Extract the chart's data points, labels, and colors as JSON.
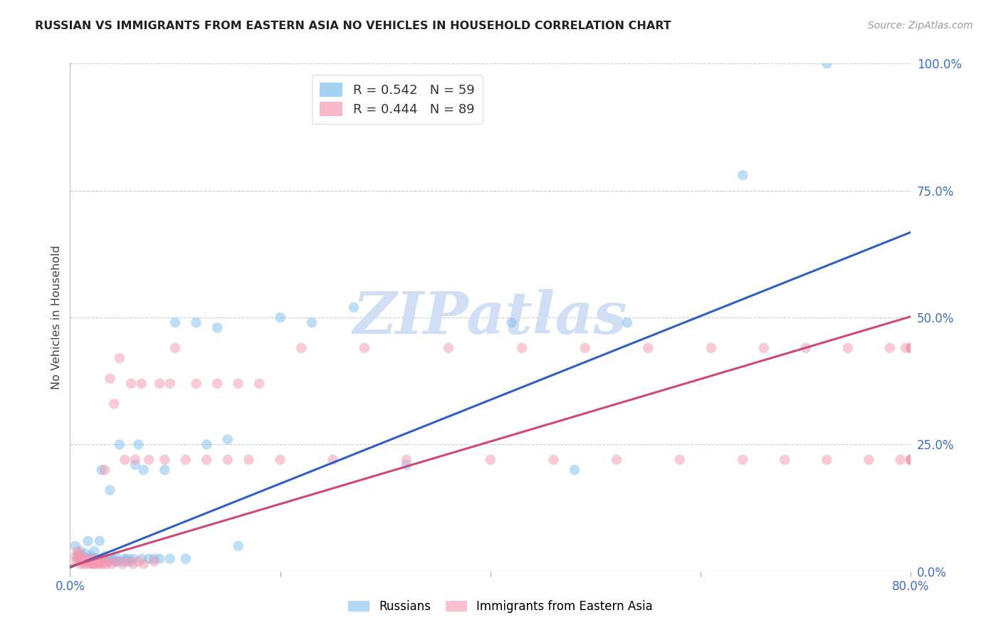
{
  "title": "RUSSIAN VS IMMIGRANTS FROM EASTERN ASIA NO VEHICLES IN HOUSEHOLD CORRELATION CHART",
  "source": "Source: ZipAtlas.com",
  "ylabel": "No Vehicles in Household",
  "x_min": 0.0,
  "x_max": 0.8,
  "y_min": 0.0,
  "y_max": 1.0,
  "y_ticks_right": [
    0.0,
    0.25,
    0.5,
    0.75,
    1.0
  ],
  "y_tick_labels_right": [
    "0.0%",
    "25.0%",
    "50.0%",
    "75.0%",
    "100.0%"
  ],
  "legend_r1": "R = 0.542",
  "legend_n1": "N = 59",
  "legend_r2": "R = 0.444",
  "legend_n2": "N = 89",
  "blue_color": "#7fbfef",
  "pink_color": "#f599b0",
  "blue_line_color": "#3060c0",
  "pink_line_color": "#d04878",
  "watermark": "ZIPatlas",
  "watermark_color": "#d0dff5",
  "label_russians": "Russians",
  "label_immigrants": "Immigrants from Eastern Asia",
  "blue_slope": 0.825,
  "blue_intercept": 0.008,
  "pink_slope": 0.615,
  "pink_intercept": 0.01,
  "russians_x": [
    0.005,
    0.007,
    0.008,
    0.01,
    0.012,
    0.013,
    0.015,
    0.016,
    0.017,
    0.018,
    0.02,
    0.021,
    0.022,
    0.023,
    0.025,
    0.026,
    0.028,
    0.03,
    0.03,
    0.032,
    0.033,
    0.035,
    0.037,
    0.038,
    0.04,
    0.042,
    0.043,
    0.045,
    0.047,
    0.05,
    0.052,
    0.055,
    0.058,
    0.06,
    0.062,
    0.065,
    0.068,
    0.07,
    0.075,
    0.08,
    0.085,
    0.09,
    0.095,
    0.1,
    0.11,
    0.12,
    0.13,
    0.14,
    0.15,
    0.16,
    0.2,
    0.23,
    0.27,
    0.32,
    0.42,
    0.48,
    0.53,
    0.64,
    0.72
  ],
  "russians_y": [
    0.05,
    0.03,
    0.025,
    0.04,
    0.03,
    0.02,
    0.035,
    0.025,
    0.06,
    0.02,
    0.03,
    0.025,
    0.015,
    0.04,
    0.025,
    0.02,
    0.06,
    0.025,
    0.2,
    0.02,
    0.03,
    0.02,
    0.025,
    0.16,
    0.025,
    0.02,
    0.03,
    0.02,
    0.25,
    0.02,
    0.025,
    0.025,
    0.02,
    0.025,
    0.21,
    0.25,
    0.025,
    0.2,
    0.025,
    0.025,
    0.025,
    0.2,
    0.025,
    0.49,
    0.025,
    0.49,
    0.25,
    0.48,
    0.26,
    0.05,
    0.5,
    0.49,
    0.52,
    0.21,
    0.49,
    0.2,
    0.49,
    0.78,
    1.0
  ],
  "immigrants_x": [
    0.005,
    0.006,
    0.007,
    0.008,
    0.009,
    0.01,
    0.011,
    0.012,
    0.013,
    0.014,
    0.015,
    0.016,
    0.017,
    0.018,
    0.019,
    0.02,
    0.021,
    0.022,
    0.023,
    0.024,
    0.025,
    0.026,
    0.027,
    0.028,
    0.029,
    0.03,
    0.032,
    0.033,
    0.035,
    0.037,
    0.038,
    0.04,
    0.042,
    0.045,
    0.047,
    0.05,
    0.052,
    0.055,
    0.058,
    0.06,
    0.062,
    0.065,
    0.068,
    0.07,
    0.075,
    0.08,
    0.085,
    0.09,
    0.095,
    0.1,
    0.11,
    0.12,
    0.13,
    0.14,
    0.15,
    0.16,
    0.17,
    0.18,
    0.2,
    0.22,
    0.25,
    0.28,
    0.32,
    0.36,
    0.4,
    0.43,
    0.46,
    0.49,
    0.52,
    0.55,
    0.58,
    0.61,
    0.64,
    0.66,
    0.68,
    0.7,
    0.72,
    0.74,
    0.76,
    0.78,
    0.79,
    0.795,
    0.8,
    0.8,
    0.8,
    0.8,
    0.8,
    0.8,
    0.8
  ],
  "immigrants_y": [
    0.03,
    0.02,
    0.04,
    0.025,
    0.035,
    0.015,
    0.025,
    0.02,
    0.015,
    0.025,
    0.02,
    0.015,
    0.025,
    0.02,
    0.015,
    0.02,
    0.025,
    0.015,
    0.02,
    0.015,
    0.025,
    0.02,
    0.015,
    0.02,
    0.015,
    0.02,
    0.015,
    0.2,
    0.015,
    0.02,
    0.38,
    0.015,
    0.33,
    0.02,
    0.42,
    0.015,
    0.22,
    0.02,
    0.37,
    0.015,
    0.22,
    0.02,
    0.37,
    0.015,
    0.22,
    0.02,
    0.37,
    0.22,
    0.37,
    0.44,
    0.22,
    0.37,
    0.22,
    0.37,
    0.22,
    0.37,
    0.22,
    0.37,
    0.22,
    0.44,
    0.22,
    0.44,
    0.22,
    0.44,
    0.22,
    0.44,
    0.22,
    0.44,
    0.22,
    0.44,
    0.22,
    0.44,
    0.22,
    0.44,
    0.22,
    0.44,
    0.22,
    0.44,
    0.22,
    0.44,
    0.22,
    0.44,
    0.22,
    0.44,
    0.22,
    0.44,
    0.22,
    0.44,
    0.22
  ]
}
